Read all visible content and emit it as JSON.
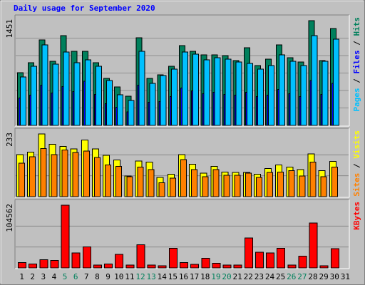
{
  "title": "Daily usage for September 2020",
  "title_color": "#0000ff",
  "legend_separator": " / ",
  "chart_data": [
    {
      "type": "bar",
      "categories": [
        "1",
        "2",
        "3",
        "4",
        "5",
        "6",
        "7",
        "8",
        "9",
        "10",
        "11",
        "12",
        "13",
        "14",
        "15",
        "16",
        "17",
        "18",
        "19",
        "20",
        "21",
        "22",
        "23",
        "24",
        "25",
        "26",
        "27",
        "28",
        "29",
        "30",
        "31"
      ],
      "category_colors": [
        "#000000",
        "#000000",
        "#000000",
        "#000000",
        "#00805c",
        "#00805c",
        "#000000",
        "#000000",
        "#000000",
        "#000000",
        "#000000",
        "#00805c",
        "#00805c",
        "#000000",
        "#000000",
        "#000000",
        "#000000",
        "#000000",
        "#00805c",
        "#00805c",
        "#000000",
        "#000000",
        "#000000",
        "#000000",
        "#000000",
        "#00805c",
        "#00805c",
        "#000000",
        "#000000",
        "#000000",
        "#000000"
      ],
      "ylim": [
        0,
        1451
      ],
      "yticks": [
        1451
      ],
      "series": [
        {
          "name": "Hits",
          "color": "#00805c",
          "values": [
            730,
            869,
            1184,
            888,
            1243,
            1026,
            1026,
            869,
            651,
            533,
            405,
            1214,
            651,
            701,
            819,
            1105,
            1026,
            977,
            977,
            967,
            898,
            1076,
            829,
            918,
            1115,
            938,
            878,
            1451,
            898,
            1342,
            0
          ]
        },
        {
          "name": "Files",
          "color": "#0000ff",
          "values": [
            380,
            420,
            560,
            450,
            540,
            470,
            610,
            430,
            300,
            250,
            190,
            560,
            320,
            330,
            400,
            520,
            480,
            440,
            460,
            430,
            420,
            460,
            400,
            420,
            500,
            440,
            400,
            620,
            430,
            580,
            0
          ]
        },
        {
          "name": "Pages",
          "color": "#00c0ff",
          "values": [
            671,
            819,
            1115,
            849,
            1016,
            869,
            908,
            819,
            622,
            424,
            346,
            1026,
            582,
            691,
            779,
            1016,
            987,
            908,
            938,
            918,
            878,
            859,
            779,
            829,
            977,
            888,
            829,
            1244,
            888,
            1194,
            0
          ]
        }
      ]
    },
    {
      "type": "bar",
      "ylim": [
        0,
        233
      ],
      "yticks": [
        233
      ],
      "series": [
        {
          "name": "Visits",
          "color": "#ffff00",
          "values": [
            156,
            166,
            233,
            195,
            187,
            177,
            210,
            177,
            154,
            136,
            77,
            133,
            128,
            72,
            84,
            156,
            120,
            87,
            113,
            92,
            90,
            90,
            84,
            105,
            118,
            110,
            100,
            159,
            97,
            131,
            0
          ]
        },
        {
          "name": "Sites",
          "color": "#ff8000",
          "values": [
            125,
            148,
            179,
            156,
            174,
            164,
            169,
            146,
            118,
            113,
            74,
            110,
            100,
            51,
            69,
            138,
            100,
            74,
            100,
            79,
            79,
            87,
            72,
            90,
            92,
            97,
            77,
            128,
            74,
            110,
            0
          ]
        }
      ]
    },
    {
      "type": "bar",
      "ylim": [
        0,
        104562
      ],
      "yticks": [
        104562
      ],
      "series": [
        {
          "name": "KBytes",
          "color": "#ff0000",
          "values": [
            9093,
            6820,
            13639,
            12503,
            104562,
            25005,
            35235,
            4546,
            6820,
            22732,
            4546,
            38644,
            4546,
            3410,
            32961,
            9093,
            5683,
            15913,
            7956,
            4546,
            4546,
            50010,
            26142,
            25005,
            32961,
            4546,
            19322,
            75016,
            3410,
            31825,
            0
          ]
        }
      ]
    }
  ]
}
